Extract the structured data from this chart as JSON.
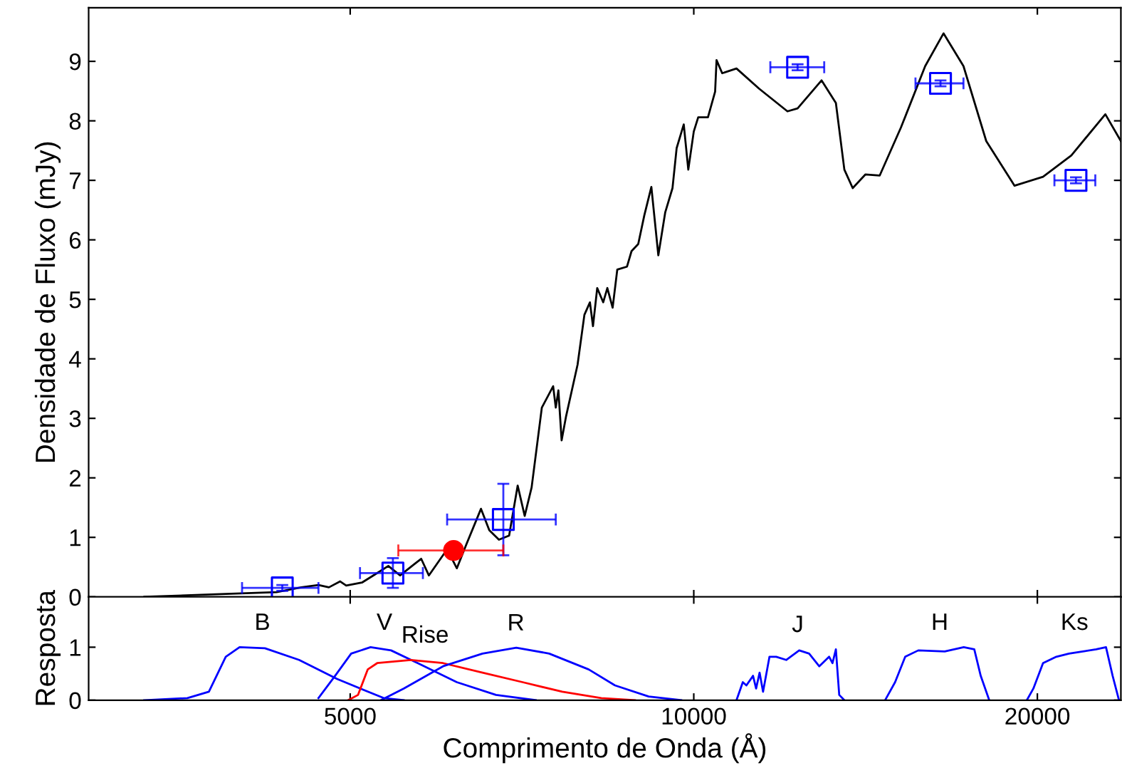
{
  "chart_data": [
    {
      "type": "scatter",
      "ylabel": "Densidade de Fluxo (mJy)",
      "log": "x",
      "xlim": [
        2950,
        23670
      ],
      "xticks": [
        5000,
        10000,
        20000
      ],
      "ylim": [
        0,
        9.9
      ],
      "yticks": [
        0,
        1,
        2,
        3,
        4,
        5,
        6,
        7,
        8,
        9
      ],
      "tick_labels": "y",
      "grid": false,
      "legend": false,
      "series": [
        {
          "type": "line",
          "color": "#000000",
          "marker": "none",
          "line_style": "solid",
          "x": [
            3300,
            3890,
            4310,
            4530,
            4690,
            4790,
            4900,
            4960,
            5120,
            5260,
            5400,
            5530,
            5690,
            5770,
            5860,
            6080,
            6200,
            6320,
            6510,
            6620,
            6750,
            6890,
            7010,
            7110,
            7210,
            7360,
            7530,
            7570,
            7610,
            7660,
            7730,
            7910,
            8020,
            8110,
            8160,
            8230,
            8330,
            8400,
            8490,
            8570,
            8740,
            8820,
            8940,
            9050,
            9180,
            9310,
            9440,
            9580,
            9660,
            9800,
            9890,
            10000,
            10090,
            10290,
            10440,
            10470,
            10590,
            10900,
            11410,
            12080,
            12330,
            12940,
            13320,
            13550,
            13780,
            14140,
            14550,
            15190,
            15950,
            16550,
            17230,
            18040,
            19100,
            20230,
            21420,
            22940,
            23670
          ],
          "values": [
            0,
            0.05,
            0.08,
            0.16,
            0.2,
            0.16,
            0.26,
            0.19,
            0.24,
            0.38,
            0.52,
            0.36,
            0.55,
            0.64,
            0.36,
            0.8,
            0.48,
            0.88,
            1.48,
            1.12,
            0.96,
            1.03,
            1.87,
            1.36,
            1.84,
            3.18,
            3.54,
            3.18,
            3.47,
            2.63,
            3.04,
            3.9,
            4.74,
            4.95,
            4.55,
            5.19,
            4.95,
            5.19,
            4.86,
            5.5,
            5.55,
            5.81,
            5.93,
            6.41,
            6.89,
            5.74,
            6.46,
            6.87,
            7.54,
            7.94,
            7.18,
            7.82,
            8.06,
            8.06,
            8.49,
            9.02,
            8.8,
            8.88,
            8.54,
            8.16,
            8.21,
            8.68,
            8.3,
            7.18,
            6.87,
            7.1,
            7.08,
            7.89,
            8.92,
            9.47,
            8.92,
            7.66,
            6.91,
            7.06,
            7.42,
            8.11,
            7.66
          ]
        },
        {
          "type": "scatter",
          "color": "#0000ff",
          "marker": "square",
          "x": [
            4360,
            5450,
            6810,
            12330,
            16450,
            21620
          ],
          "values": [
            0.15,
            0.4,
            1.3,
            8.9,
            8.63,
            7.0
          ],
          "errors": [
            0.05,
            0.25,
            [
              0.7,
              1.9
            ],
            0.05,
            0.05,
            0.05
          ],
          "xerrors": [
            [
              4020,
              4690
            ],
            [
              5100,
              5790
            ],
            [
              6080,
              7570
            ],
            [
              11670,
              13010
            ],
            [
              15640,
              17230
            ],
            [
              20700,
              22480
            ]
          ]
        },
        {
          "type": "scatter",
          "color": "#ff0000",
          "marker": "circle",
          "x": [
            6160
          ],
          "values": [
            0.78
          ],
          "xerrors": [
            [
              5510,
              6810
            ]
          ]
        }
      ]
    },
    {
      "type": "line",
      "xlabel": "Comprimento de Onda (Å)",
      "ylabel": "Resposta",
      "log": "x",
      "xlim": [
        2950,
        23670
      ],
      "xticks": [
        5000,
        10000,
        20000
      ],
      "ylim": [
        0,
        1.95
      ],
      "yticks": [
        0,
        1
      ],
      "grid": false,
      "legend": false,
      "marker": "none",
      "line_style": "solid",
      "series": [
        {
          "name": "B",
          "color": "#0000ff",
          "x": [
            3300,
            3600,
            3760,
            3890,
            4000,
            4210,
            4510,
            4870,
            5350,
            5570
          ],
          "values": [
            0,
            0.04,
            0.16,
            0.82,
            1.0,
            0.98,
            0.76,
            0.4,
            0.04,
            0
          ]
        },
        {
          "name": "V",
          "color": "#0000ff",
          "x": [
            4690,
            4850,
            5010,
            5210,
            5430,
            5730,
            6200,
            6710,
            7270
          ],
          "values": [
            0.04,
            0.46,
            0.88,
            1.0,
            0.94,
            0.7,
            0.34,
            0.1,
            0
          ]
        },
        {
          "name": "Rise",
          "color": "#ff0000",
          "x": [
            4980,
            5080,
            5180,
            5280,
            5650,
            6030,
            6530,
            7080,
            7670,
            8300,
            8880
          ],
          "values": [
            0,
            0.1,
            0.58,
            0.7,
            0.76,
            0.7,
            0.52,
            0.34,
            0.16,
            0.04,
            0
          ]
        },
        {
          "name": "R",
          "color": "#0000ff",
          "x": [
            5320,
            5570,
            6030,
            6530,
            6990,
            7470,
            8090,
            8530,
            9130,
            9750
          ],
          "values": [
            0,
            0.22,
            0.64,
            0.88,
            0.99,
            0.88,
            0.58,
            0.28,
            0.07,
            0
          ]
        },
        {
          "name": "J",
          "color": "#0000ff",
          "x": [
            10900,
            11040,
            11120,
            11270,
            11340,
            11420,
            11500,
            11650,
            11810,
            12050,
            12370,
            12620,
            12880,
            13140,
            13230,
            13320,
            13410,
            13550
          ],
          "values": [
            0,
            0.34,
            0.28,
            0.46,
            0.22,
            0.52,
            0.16,
            0.82,
            0.82,
            0.76,
            0.94,
            0.88,
            0.64,
            0.82,
            0.7,
            0.96,
            0.1,
            0
          ]
        },
        {
          "name": "H",
          "color": "#0000ff",
          "x": [
            14710,
            15010,
            15320,
            15730,
            16590,
            17240,
            17610,
            17840,
            18150
          ],
          "values": [
            0,
            0.34,
            0.82,
            0.94,
            0.92,
            1.0,
            0.96,
            0.46,
            0
          ]
        },
        {
          "name": "Ks",
          "color": "#0000ff",
          "x": [
            19580,
            19840,
            20230,
            20780,
            21320,
            21920,
            22520,
            22970,
            23280,
            23580
          ],
          "values": [
            0,
            0.22,
            0.7,
            0.82,
            0.88,
            0.92,
            0.96,
            1.0,
            0.46,
            0
          ]
        }
      ]
    }
  ]
}
